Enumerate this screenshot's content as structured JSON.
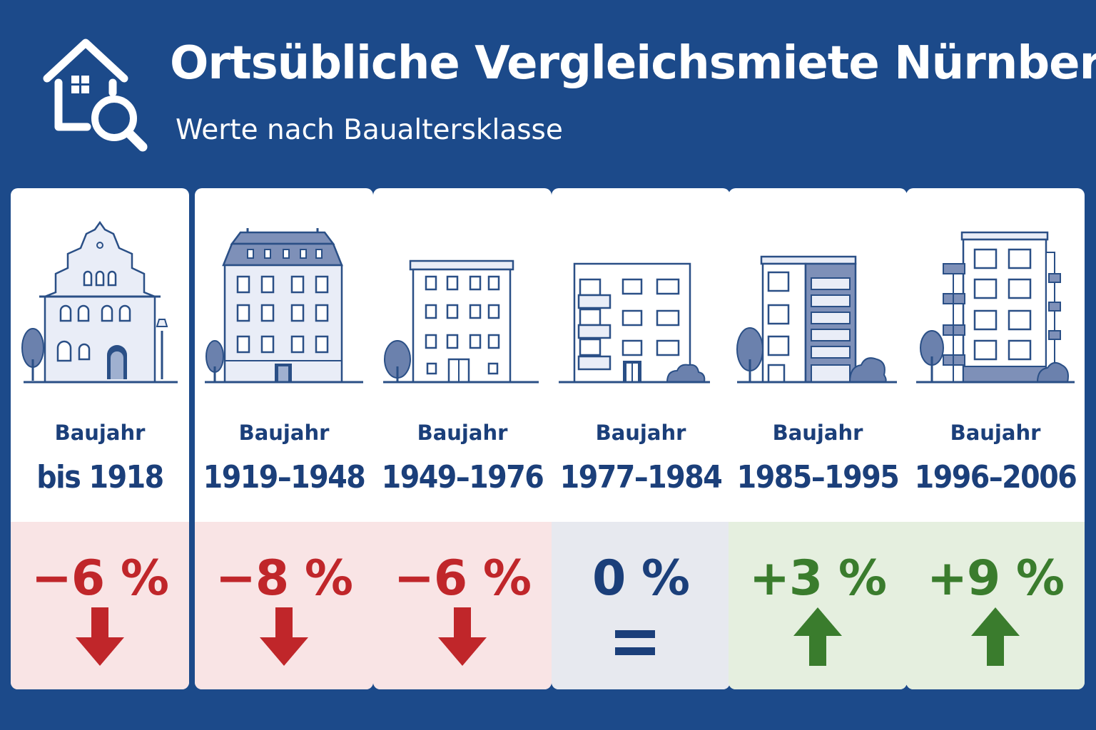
{
  "header": {
    "title": "Ortsübliche Vergleichsmiete Nürnberg",
    "subtitle": "Werte nach Baualtersklasse",
    "logo_icon": "house-search-icon"
  },
  "colors": {
    "background": "#1c4a8a",
    "negative": "#c0262a",
    "neutral": "#1b3f7a",
    "positive": "#3a7c2d"
  },
  "cards": [
    {
      "label": "Baujahr",
      "years": "bis 1918",
      "percent": "−6 %",
      "trend": "down",
      "building_icon": "historic-gabled-house-icon"
    },
    {
      "label": "Baujahr",
      "years": "1919–1948",
      "percent": "−8 %",
      "trend": "down",
      "building_icon": "mansard-apartment-building-icon"
    },
    {
      "label": "Baujahr",
      "years": "1949–1976",
      "percent": "−6 %",
      "trend": "down",
      "building_icon": "postwar-apartment-block-icon"
    },
    {
      "label": "Baujahr",
      "years": "1977–1984",
      "percent": "0 %",
      "trend": "equal",
      "building_icon": "balcony-apartment-block-icon"
    },
    {
      "label": "Baujahr",
      "years": "1985–1995",
      "percent": "+3 %",
      "trend": "up",
      "building_icon": "modern-apartment-block-icon"
    },
    {
      "label": "Baujahr",
      "years": "1996–2006",
      "percent": "+9 %",
      "trend": "up",
      "building_icon": "contemporary-highrise-icon"
    }
  ]
}
